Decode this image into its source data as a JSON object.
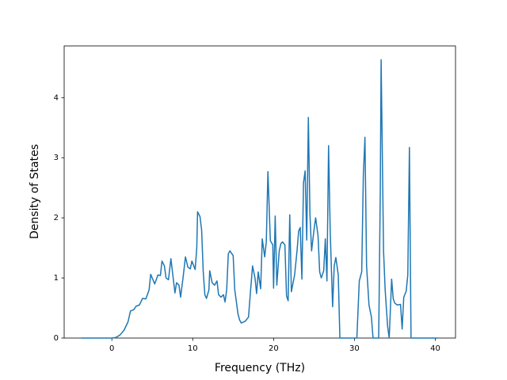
{
  "chart_data": {
    "type": "line",
    "xlabel": "Frequency (THz)",
    "ylabel": "Density of States",
    "xlim": [
      -5.9,
      42.5
    ],
    "ylim": [
      0,
      4.86
    ],
    "xticks": [
      0,
      10,
      20,
      30,
      40
    ],
    "yticks": [
      0,
      1,
      2,
      3,
      4
    ],
    "series": [
      {
        "color": "#1f77b4",
        "x": [
          -3.8,
          0,
          0.5,
          1,
          1.5,
          2,
          2.3,
          2.7,
          3,
          3.4,
          3.8,
          4.2,
          4.6,
          4.8,
          5.3,
          5.7,
          6,
          6.2,
          6.5,
          6.7,
          7,
          7.3,
          7.6,
          7.8,
          8,
          8.3,
          8.5,
          8.8,
          9.1,
          9.4,
          9.7,
          9.9,
          10.3,
          10.5,
          10.6,
          10.9,
          11.1,
          11.3,
          11.5,
          11.7,
          12,
          12.1,
          12.4,
          12.7,
          13,
          13.2,
          13.5,
          13.8,
          14,
          14.2,
          14.4,
          14.6,
          15,
          15.2,
          15.6,
          15.8,
          16,
          16.5,
          16.9,
          17.1,
          17.4,
          17.7,
          17.9,
          18.1,
          18.4,
          18.6,
          18.9,
          19.1,
          19.3,
          19.6,
          19.9,
          20,
          20.2,
          20.4,
          20.7,
          20.9,
          21.1,
          21.4,
          21.6,
          21.8,
          22,
          22.2,
          22.6,
          22.9,
          23.1,
          23.3,
          23.5,
          23.7,
          23.9,
          24.1,
          24.3,
          24.5,
          24.7,
          25,
          25.2,
          25.5,
          25.7,
          25.9,
          26.2,
          26.4,
          26.6,
          26.8,
          27,
          27.3,
          27.5,
          27.7,
          28,
          28.2,
          29.8,
          30.3,
          30.6,
          30.9,
          31.1,
          31.3,
          31.5,
          31.8,
          32.1,
          32.3,
          33,
          33.2,
          33.3,
          33.6,
          33.8,
          34.1,
          34.3,
          34.6,
          34.8,
          35,
          35.3,
          35.7,
          35.9,
          36.1,
          36.4,
          36.6,
          36.8,
          37,
          40.3
        ],
        "values": [
          0,
          0,
          0.01,
          0.05,
          0.13,
          0.27,
          0.45,
          0.47,
          0.53,
          0.55,
          0.66,
          0.65,
          0.8,
          1.06,
          0.9,
          1.05,
          1.04,
          1.28,
          1.2,
          1.0,
          0.97,
          1.32,
          0.98,
          0.75,
          0.92,
          0.88,
          0.68,
          1.0,
          1.35,
          1.18,
          1.15,
          1.28,
          1.14,
          1.5,
          2.1,
          2.02,
          1.8,
          1.1,
          0.72,
          0.66,
          0.8,
          1.12,
          0.92,
          0.88,
          0.95,
          0.72,
          0.68,
          0.72,
          0.6,
          0.8,
          1.4,
          1.45,
          1.37,
          0.8,
          0.4,
          0.3,
          0.25,
          0.28,
          0.35,
          0.7,
          1.2,
          1.0,
          0.74,
          1.1,
          0.82,
          1.65,
          1.35,
          1.6,
          2.77,
          1.62,
          1.55,
          0.83,
          2.03,
          0.88,
          1.45,
          1.57,
          1.6,
          1.55,
          0.7,
          0.62,
          2.05,
          0.77,
          1.05,
          1.45,
          1.78,
          1.84,
          0.98,
          2.58,
          2.78,
          1.63,
          3.67,
          2.05,
          1.45,
          1.8,
          2.0,
          1.7,
          1.1,
          1.0,
          1.12,
          1.65,
          0.95,
          3.2,
          1.8,
          0.52,
          1.2,
          1.34,
          1.05,
          0,
          0,
          0,
          0.95,
          1.1,
          2.7,
          3.34,
          1.2,
          0.55,
          0.35,
          0,
          0,
          2.5,
          4.63,
          1.45,
          0.8,
          0.2,
          0,
          0.98,
          0.65,
          0.58,
          0.55,
          0.56,
          0.15,
          0.68,
          0.78,
          1.05,
          3.17,
          0,
          0
        ]
      }
    ]
  }
}
